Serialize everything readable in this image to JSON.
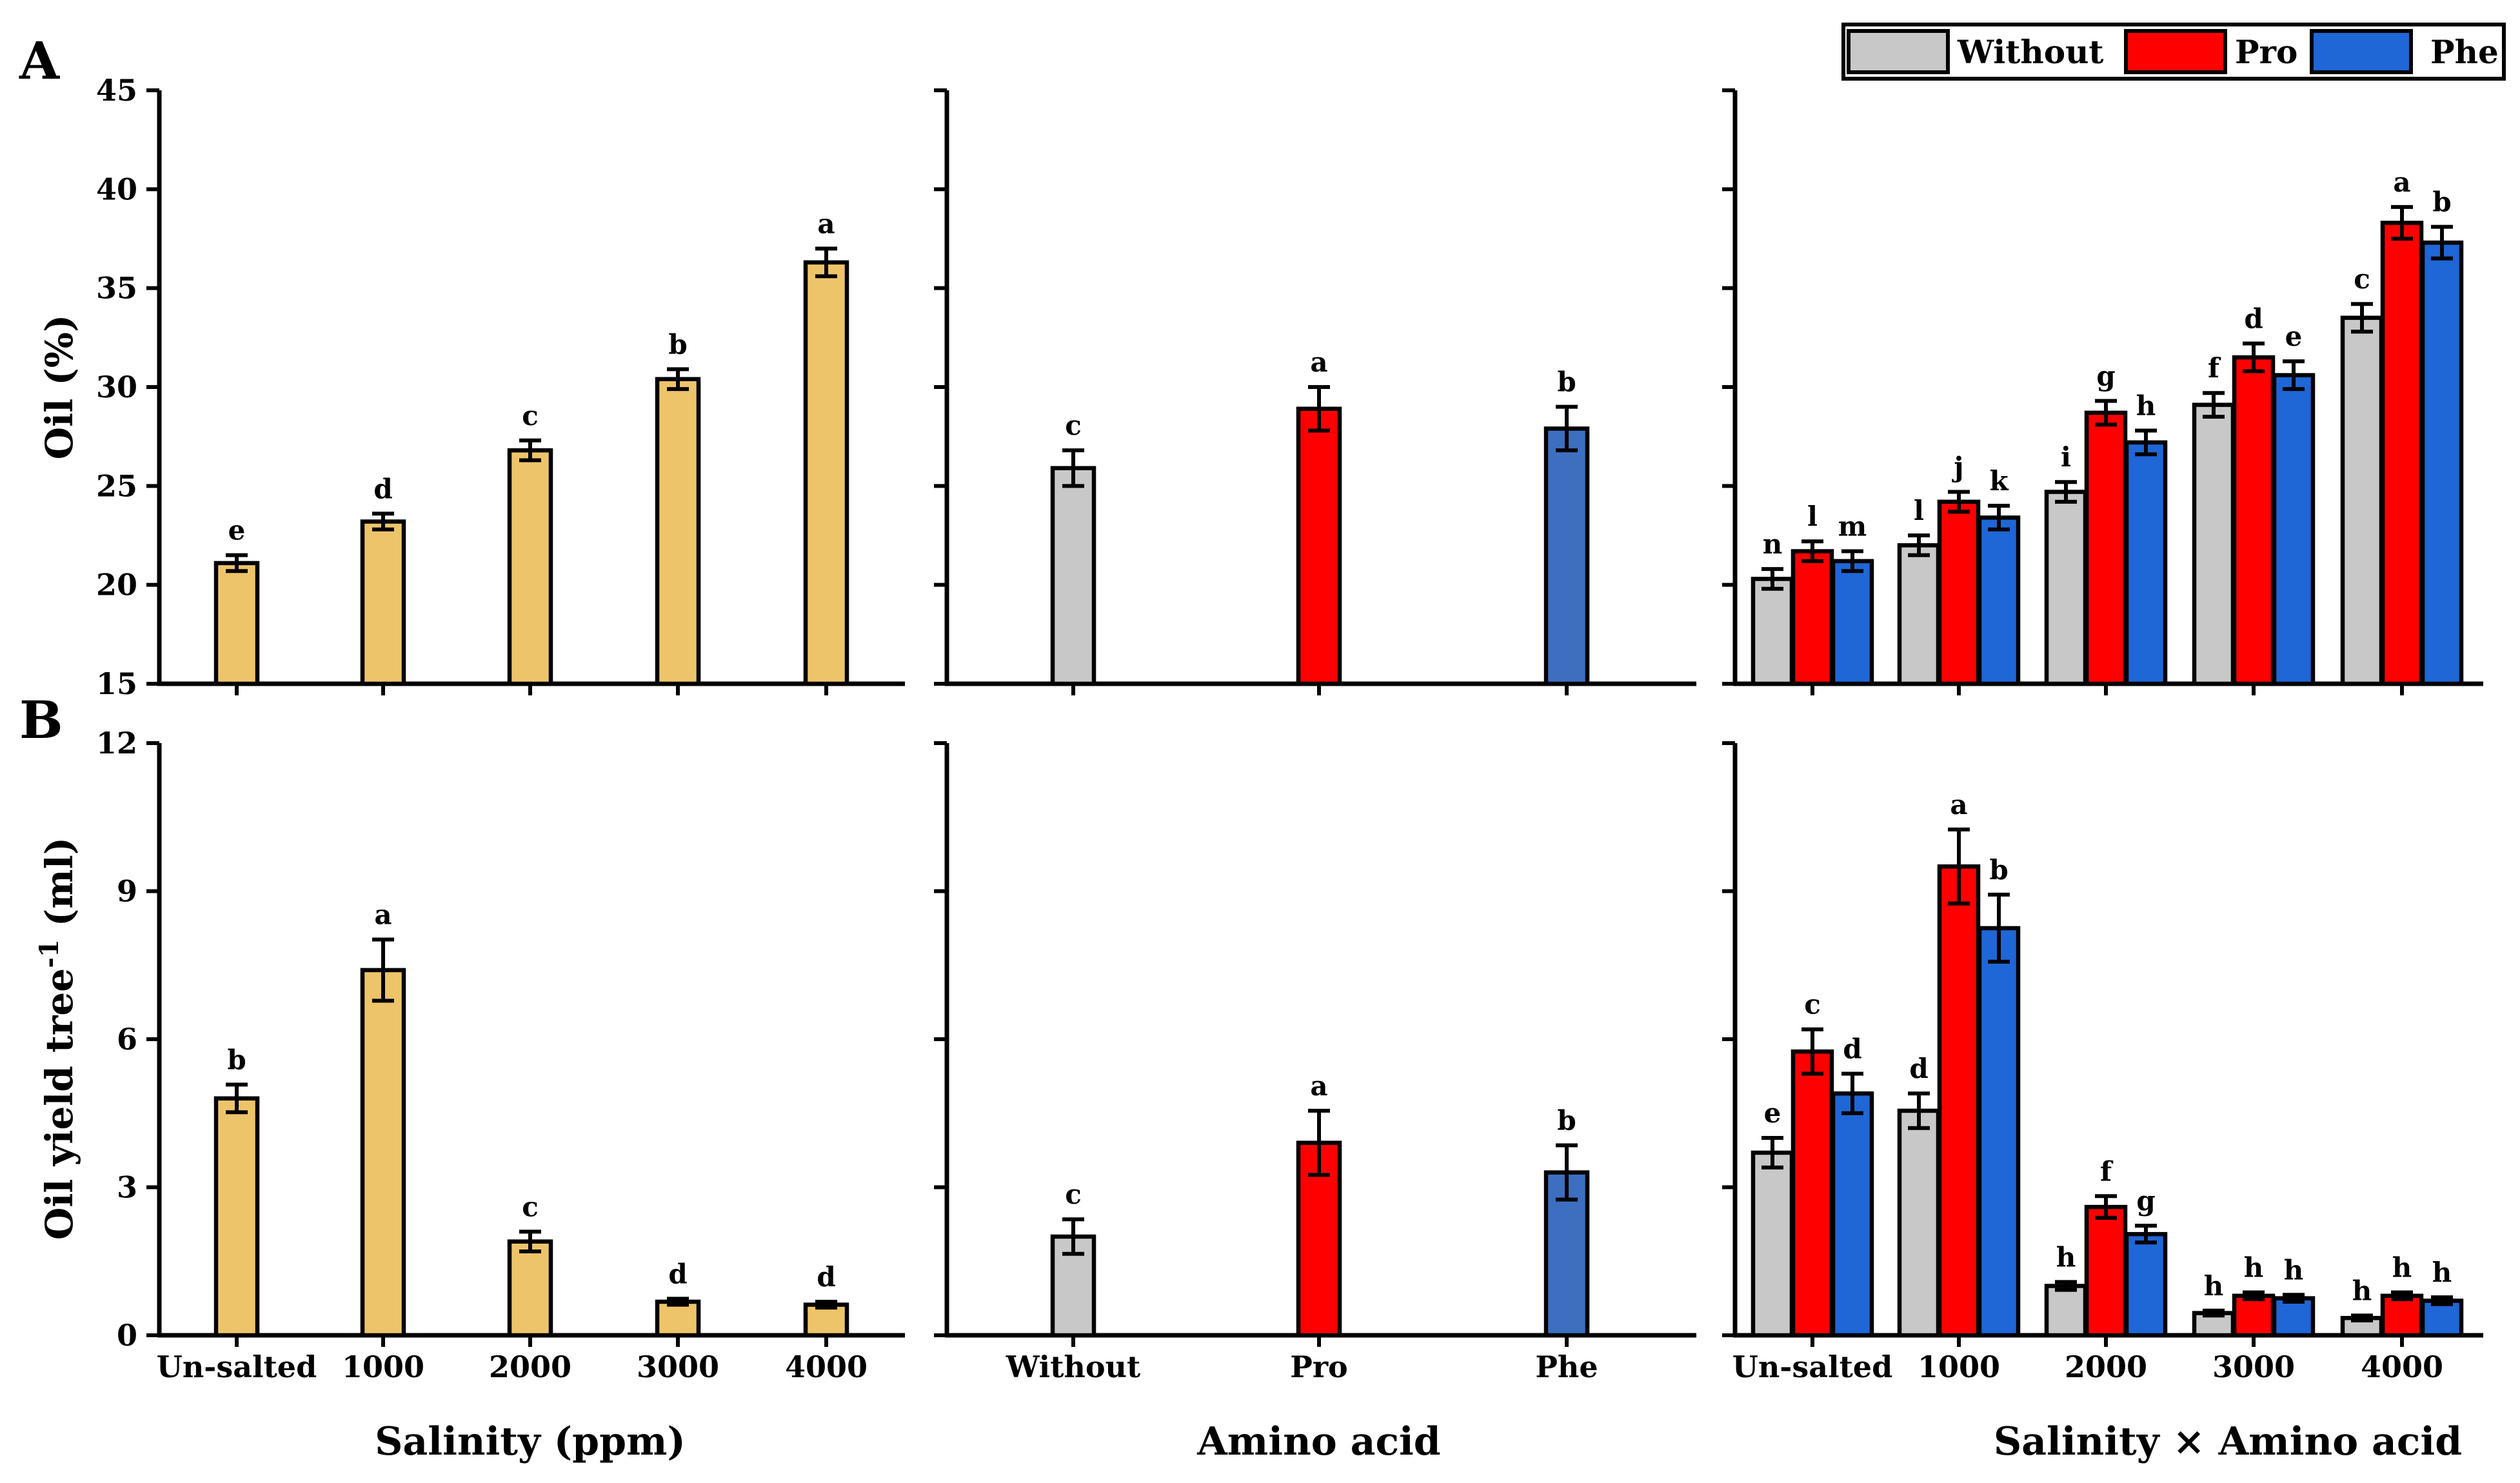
{
  "chart_data": {
    "type": "bar",
    "panel_labels": [
      "A",
      "B"
    ],
    "legend": {
      "placement": "top-right",
      "entries": [
        {
          "name": "Without",
          "color": "#c8c8c8"
        },
        {
          "name": "Pro",
          "color": "#ff0000"
        },
        {
          "name": "Phe",
          "color": "#1f66d6"
        }
      ]
    },
    "x_titles": [
      "Salinity (ppm)",
      "Amino acid",
      "Salinity × Amino acid"
    ],
    "salinity_categories": [
      "Un-salted",
      "1000",
      "2000",
      "3000",
      "4000"
    ],
    "aa_categories": [
      "Without",
      "Pro",
      "Phe"
    ],
    "rows": [
      {
        "id": "A",
        "ylabel": "Oil (%)",
        "ylim": [
          15,
          45
        ],
        "yticks": [
          "15",
          "20",
          "25",
          "30",
          "35",
          "40",
          "45"
        ],
        "salinity": {
          "values": [
            21.1,
            23.2,
            26.8,
            30.4,
            36.3
          ],
          "errors": [
            0.4,
            0.4,
            0.5,
            0.5,
            0.7
          ],
          "letters": [
            "e",
            "d",
            "c",
            "b",
            "a"
          ],
          "color": "#eec46a"
        },
        "amino_acid": {
          "values": [
            25.9,
            28.9,
            27.9
          ],
          "errors": [
            0.9,
            1.1,
            1.1
          ],
          "letters": [
            "c",
            "a",
            "b"
          ],
          "colors": [
            "#c8c8c8",
            "#ff0000",
            "#3d6fc0"
          ]
        },
        "interaction": {
          "series": [
            {
              "name": "Without",
              "values": [
                20.3,
                22.0,
                24.7,
                29.1,
                33.5
              ],
              "errors": [
                0.5,
                0.5,
                0.5,
                0.6,
                0.7
              ],
              "letters": [
                "n",
                "l",
                "i",
                "f",
                "c"
              ]
            },
            {
              "name": "Pro",
              "values": [
                21.7,
                24.2,
                28.7,
                31.5,
                38.3
              ],
              "errors": [
                0.5,
                0.5,
                0.6,
                0.7,
                0.8
              ],
              "letters": [
                "l",
                "j",
                "g",
                "d",
                "a"
              ]
            },
            {
              "name": "Phe",
              "values": [
                21.2,
                23.4,
                27.2,
                30.6,
                37.3
              ],
              "errors": [
                0.5,
                0.6,
                0.6,
                0.7,
                0.8
              ],
              "letters": [
                "m",
                "k",
                "h",
                "e",
                "b"
              ]
            }
          ]
        }
      },
      {
        "id": "B",
        "ylabel": "Oil yield tree",
        "ylabel_sup": "-1",
        "ylabel_unit": "(ml)",
        "ylim": [
          0,
          12
        ],
        "yticks": [
          "0",
          "3",
          "6",
          "9",
          "12"
        ],
        "salinity": {
          "values": [
            4.8,
            7.4,
            1.9,
            0.68,
            0.62
          ],
          "errors": [
            0.28,
            0.62,
            0.2,
            0.06,
            0.06
          ],
          "letters": [
            "b",
            "a",
            "c",
            "d",
            "d"
          ],
          "color": "#eec46a"
        },
        "amino_acid": {
          "values": [
            2.0,
            3.9,
            3.3
          ],
          "errors": [
            0.35,
            0.65,
            0.55
          ],
          "letters": [
            "c",
            "a",
            "b"
          ],
          "colors": [
            "#c8c8c8",
            "#ff0000",
            "#3d6fc0"
          ]
        },
        "interaction": {
          "series": [
            {
              "name": "Without",
              "values": [
                3.7,
                4.55,
                1.0,
                0.45,
                0.35
              ],
              "errors": [
                0.3,
                0.35,
                0.08,
                0.05,
                0.05
              ],
              "letters": [
                "e",
                "d",
                "h",
                "h",
                "h"
              ]
            },
            {
              "name": "Pro",
              "values": [
                5.75,
                9.5,
                2.6,
                0.8,
                0.8
              ],
              "errors": [
                0.45,
                0.75,
                0.22,
                0.07,
                0.07
              ],
              "letters": [
                "c",
                "a",
                "f",
                "h",
                "h"
              ]
            },
            {
              "name": "Phe",
              "values": [
                4.9,
                8.25,
                2.05,
                0.75,
                0.7
              ],
              "errors": [
                0.4,
                0.68,
                0.17,
                0.07,
                0.07
              ],
              "letters": [
                "d",
                "b",
                "g",
                "h",
                "h"
              ]
            }
          ]
        }
      }
    ]
  }
}
